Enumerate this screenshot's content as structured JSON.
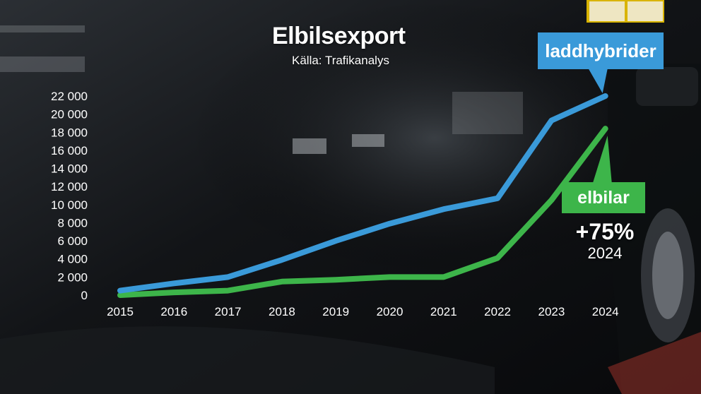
{
  "title": "Elbilsexport",
  "source": "Källa: Trafikanalys",
  "chart_data": {
    "type": "line",
    "title": "Elbilsexport",
    "subtitle": "Källa: Trafikanalys",
    "x": [
      "2015",
      "2016",
      "2017",
      "2018",
      "2019",
      "2020",
      "2021",
      "2022",
      "2023",
      "2024"
    ],
    "yticks": [
      "0",
      "2 000",
      "4 000",
      "6 000",
      "8 000",
      "10 000",
      "12 000",
      "14 000",
      "16 000",
      "18 000",
      "20 000",
      "22 000"
    ],
    "ylim": [
      0,
      22000
    ],
    "grid": false,
    "series": [
      {
        "name": "laddhybrider",
        "color": "#3a9ad9",
        "values": [
          500,
          1300,
          2000,
          3900,
          6000,
          7900,
          9500,
          10700,
          19300,
          22000
        ]
      },
      {
        "name": "elbilar",
        "color": "#3db54a",
        "values": [
          0,
          300,
          500,
          1500,
          1700,
          2000,
          2000,
          4100,
          10500,
          18400
        ]
      }
    ],
    "annotations": [
      {
        "value": "+75%",
        "label": "2024"
      }
    ]
  }
}
